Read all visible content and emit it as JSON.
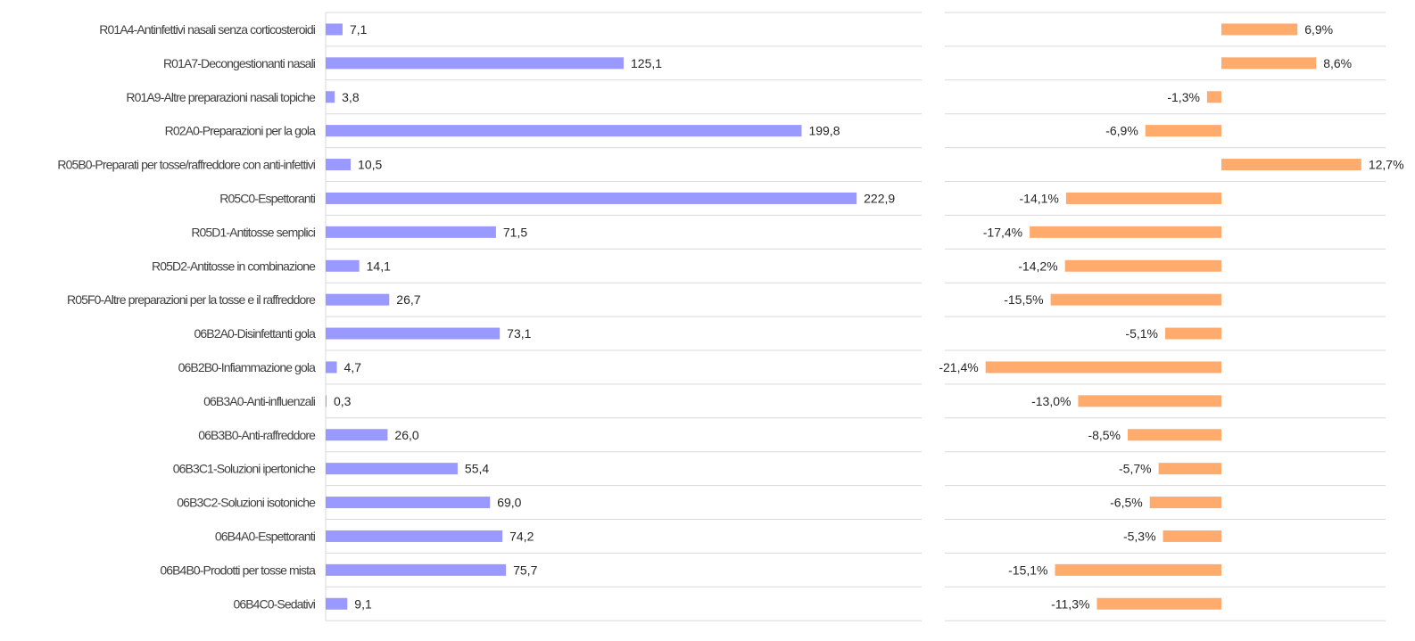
{
  "chart_data": [
    {
      "type": "bar",
      "orientation": "horizontal",
      "categories": [
        "R01A4-Antinfettivi nasali senza corticosteroidi",
        "R01A7-Decongestionanti nasali",
        "R01A9-Altre preparazioni nasali topiche",
        "R02A0-Preparazioni per la gola",
        "R05B0-Preparati per tosse/raffreddore con anti-infettivi",
        "R05C0-Espettoranti",
        "R05D1-Antitosse semplici",
        "R05D2-Antitosse in combinazione",
        "R05F0-Altre preparazioni per la tosse e il raffreddore",
        "06B2A0-Disinfettanti gola",
        "06B2B0-Infiammazione gola",
        "06B3A0-Anti-influenzali",
        "06B3B0-Anti-raffreddore",
        "06B3C1-Soluzioni ipertoniche",
        "06B3C2-Soluzioni isotoniche",
        "06B4A0-Espettoranti",
        "06B4B0-Prodotti per tosse mista",
        "06B4C0-Sedativi"
      ],
      "values": [
        7.1,
        125.1,
        3.8,
        199.8,
        10.5,
        222.9,
        71.5,
        14.1,
        26.7,
        73.1,
        4.7,
        0.3,
        26.0,
        55.4,
        69.0,
        74.2,
        75.7,
        9.1
      ],
      "value_labels": [
        "7,1",
        "125,1",
        "3,8",
        "199,8",
        "10,5",
        "222,9",
        "71,5",
        "14,1",
        "26,7",
        "73,1",
        "4,7",
        "0,3",
        "26,0",
        "55,4",
        "69,0",
        "74,2",
        "75,7",
        "9,1"
      ],
      "xlim": [
        0,
        250
      ],
      "color": "#9999ff",
      "grid": "horizontal"
    },
    {
      "type": "bar",
      "orientation": "horizontal",
      "values": [
        6.9,
        8.6,
        -1.3,
        -6.9,
        12.7,
        -14.1,
        -17.4,
        -14.2,
        -15.5,
        -5.1,
        -21.4,
        -13.0,
        -8.5,
        -5.7,
        -6.5,
        -5.3,
        -15.1,
        -11.3
      ],
      "value_labels": [
        "6,9%",
        "8,6%",
        "-1,3%",
        "-6,9%",
        "12,7%",
        "-14,1%",
        "-17,4%",
        "-14,2%",
        "-15,5%",
        "-5,1%",
        "-21,4%",
        "-13,0%",
        "-8,5%",
        "-5,7%",
        "-6,5%",
        "-5,3%",
        "-15,1%",
        "-11,3%"
      ],
      "xlim": [
        -25,
        15
      ],
      "color": "#ffab6e",
      "grid": "horizontal"
    }
  ]
}
